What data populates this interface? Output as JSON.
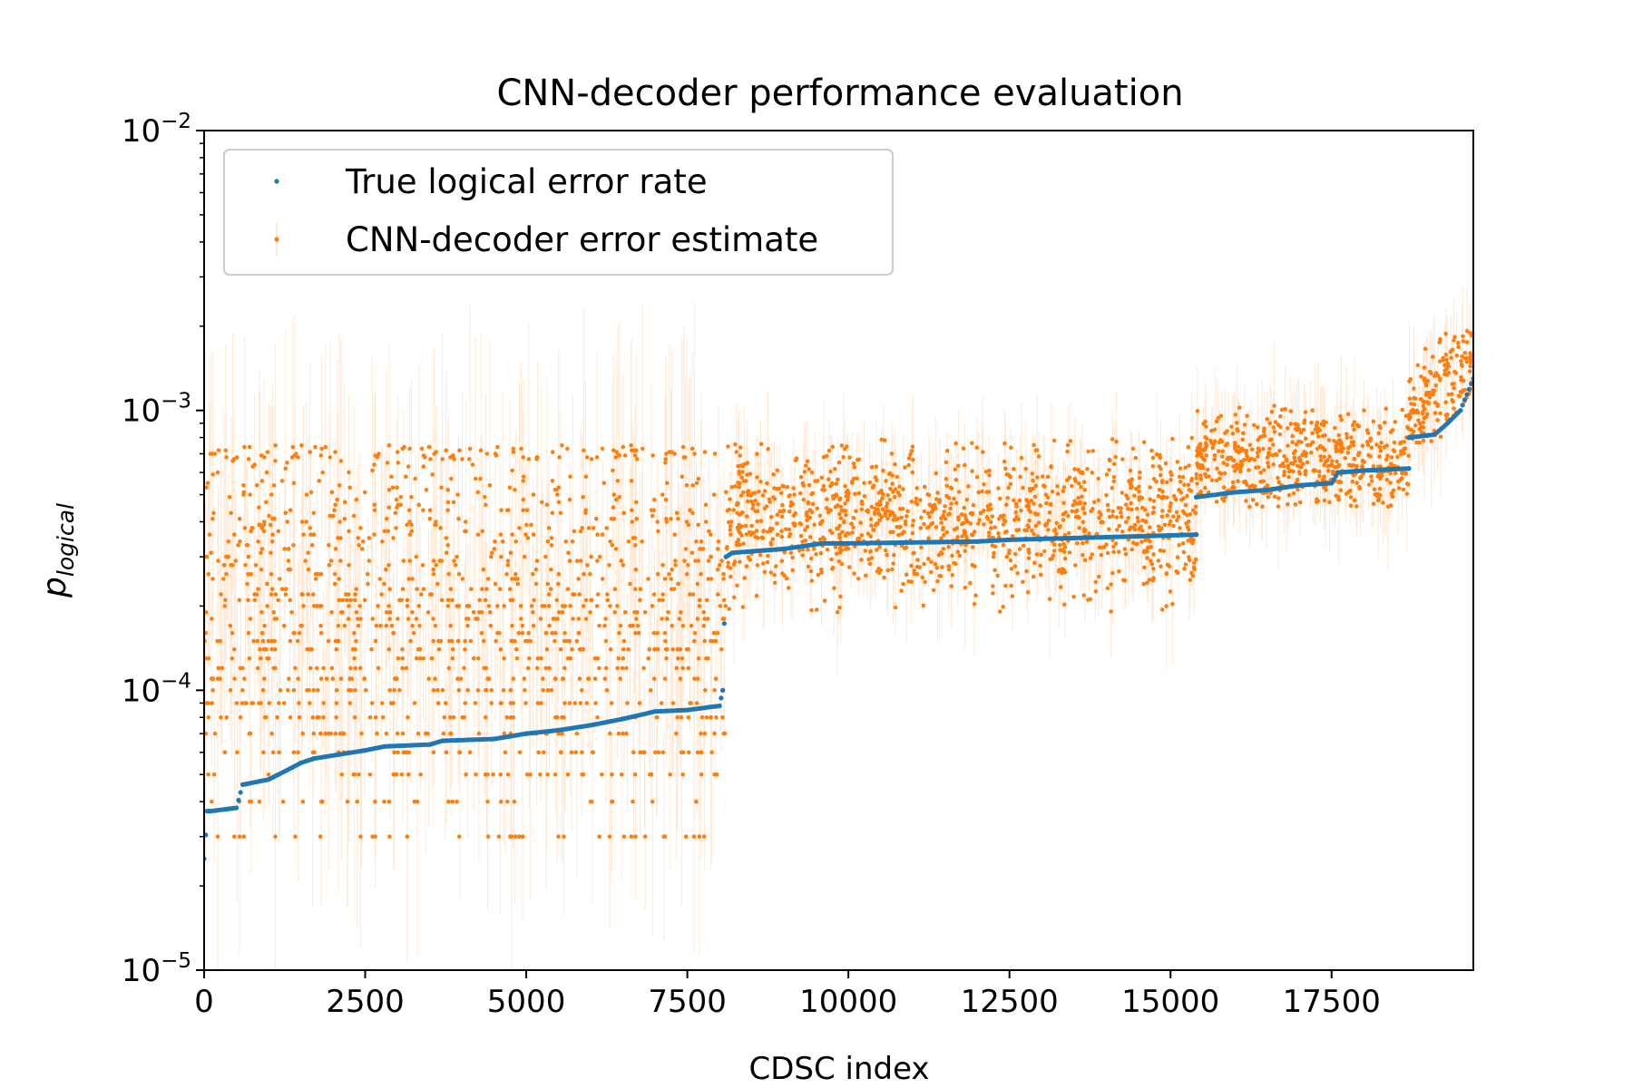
{
  "chart_data": {
    "type": "scatter",
    "title": "CNN-decoder performance evaluation",
    "xlabel": "CDSC index",
    "ylabel": {
      "base": "p",
      "sub": "logical"
    },
    "xlim": [
      0,
      19700
    ],
    "ylim": [
      1e-05,
      0.01
    ],
    "yscale": "log",
    "x_ticks": [
      0,
      2500,
      5000,
      7500,
      10000,
      12500,
      15000,
      17500
    ],
    "x_tick_labels": [
      "0",
      "2500",
      "5000",
      "7500",
      "10000",
      "12500",
      "15000",
      "17500"
    ],
    "y_ticks": [
      {
        "value": 1e-05,
        "base": "10",
        "exp": "−5"
      },
      {
        "value": 0.0001,
        "base": "10",
        "exp": "−4"
      },
      {
        "value": 0.001,
        "base": "10",
        "exp": "−3"
      },
      {
        "value": 0.01,
        "base": "10",
        "exp": "−2"
      }
    ],
    "grid": false,
    "legend": {
      "position": "top-left"
    },
    "series": [
      {
        "name": "True logical error rate",
        "color": "#1f77b4",
        "x": [
          0,
          50,
          100,
          500,
          600,
          1000,
          1300,
          1500,
          1700,
          2500,
          2800,
          3500,
          3700,
          4500,
          5000,
          5500,
          6000,
          6500,
          7000,
          7500,
          8000,
          8050,
          8100,
          8200,
          9000,
          9600,
          10000,
          12000,
          12500,
          13500,
          14500,
          15400,
          15400,
          16000,
          16500,
          17000,
          17500,
          17600,
          18000,
          18700,
          18700,
          19100,
          19300,
          19500,
          19700
        ],
        "y": [
          2.5e-05,
          3.7e-05,
          3.7e-05,
          3.8e-05,
          4.6e-05,
          4.8e-05,
          5.2e-05,
          5.5e-05,
          5.7e-05,
          6.1e-05,
          6.3e-05,
          6.4e-05,
          6.6e-05,
          6.7e-05,
          7e-05,
          7.2e-05,
          7.5e-05,
          7.9e-05,
          8.4e-05,
          8.5e-05,
          8.8e-05,
          0.0001,
          0.0003,
          0.00031,
          0.00032,
          0.000335,
          0.000335,
          0.00034,
          0.000345,
          0.00035,
          0.000355,
          0.00036,
          0.00049,
          0.00051,
          0.00052,
          0.00054,
          0.00055,
          0.0006,
          0.00061,
          0.00062,
          0.0008,
          0.00082,
          0.0009,
          0.001,
          0.0013
        ]
      },
      {
        "name": "CNN-decoder error estimate",
        "color": "#ff7f0e",
        "segments": [
          {
            "x": [
              0,
              8100
            ],
            "median": 0.00018,
            "spread_decades": 0.38,
            "min": 3e-05,
            "max": 0.00075
          },
          {
            "x": [
              8100,
              15400
            ],
            "median": 0.00041,
            "spread_decades": 0.13,
            "min": 0.00019,
            "max": 0.0008
          },
          {
            "x": [
              15400,
              18700
            ],
            "median": 0.00067,
            "spread_decades": 0.09,
            "min": 0.00045,
            "max": 0.00105
          },
          {
            "x": [
              18700,
              19700
            ],
            "median": 0.00105,
            "spread_decades": 0.08,
            "min": 0.00075,
            "max": 0.002
          }
        ]
      }
    ]
  }
}
